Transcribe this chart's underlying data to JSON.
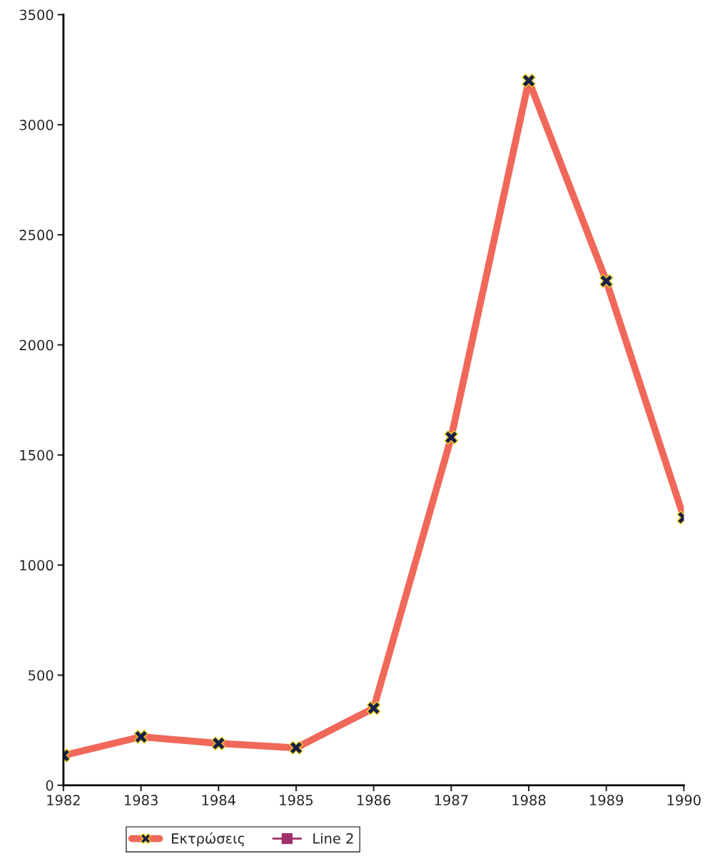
{
  "chart_data": {
    "type": "line",
    "x": [
      1982,
      1983,
      1984,
      1985,
      1986,
      1987,
      1988,
      1989,
      1990
    ],
    "series": [
      {
        "name": "Εκτρώσεις",
        "color": "#f0685a",
        "marker": "cross",
        "values": [
          135,
          220,
          190,
          170,
          350,
          1580,
          3200,
          2290,
          1215
        ]
      },
      {
        "name": "Line 2",
        "color": "#a0306a",
        "marker": "square",
        "values": [
          null,
          null,
          null,
          null,
          null,
          null,
          null,
          null,
          null
        ]
      }
    ],
    "xlim": [
      1982,
      1990
    ],
    "xticks": [
      1982,
      1983,
      1984,
      1985,
      1986,
      1987,
      1988,
      1989,
      1990
    ],
    "ylim": [
      0,
      3500
    ],
    "yticks": [
      0,
      500,
      1000,
      1500,
      2000,
      2500,
      3000,
      3500
    ],
    "grid": false,
    "legend": "bottom",
    "line_style": "solid"
  }
}
